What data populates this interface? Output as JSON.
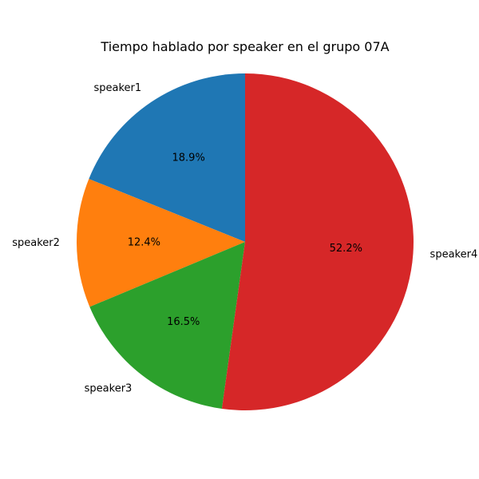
{
  "chart_data": {
    "type": "pie",
    "title": "Tiempo hablado por speaker en el grupo 07A",
    "start_angle": 90,
    "direction": "counterclockwise",
    "slices": [
      {
        "label": "speaker1",
        "value": 18.9,
        "pct_label": "18.9%",
        "color": "#1f77b4"
      },
      {
        "label": "speaker2",
        "value": 12.4,
        "pct_label": "12.4%",
        "color": "#ff7f0e"
      },
      {
        "label": "speaker3",
        "value": 16.5,
        "pct_label": "16.5%",
        "color": "#2ca02c"
      },
      {
        "label": "speaker4",
        "value": 52.2,
        "pct_label": "52.2%",
        "color": "#d62728"
      }
    ]
  }
}
